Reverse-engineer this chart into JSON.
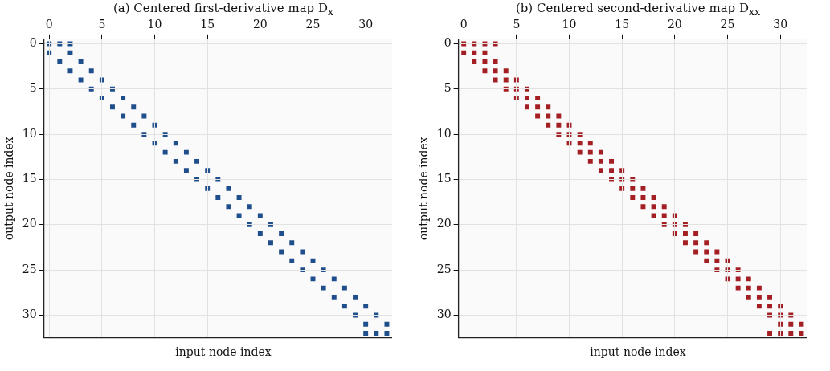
{
  "chart_data": [
    {
      "type": "scatter",
      "title": "(a) Centered first-derivative map D$_{x}$",
      "xlabel": "input node index",
      "ylabel": "output node index",
      "xlim": [
        -0.5,
        32.5
      ],
      "ylim": [
        32.5,
        -0.5
      ],
      "xticks": [
        0,
        5,
        10,
        15,
        20,
        25,
        30
      ],
      "yticks": [
        0,
        5,
        10,
        15,
        20,
        25,
        30
      ],
      "grid": true,
      "marker": "square",
      "series": [
        {
          "color": "#1f4e8c",
          "x": [
            0,
            1,
            2,
            0,
            2,
            1,
            3,
            2,
            4,
            3,
            5,
            4,
            6,
            5,
            7,
            6,
            8,
            7,
            9,
            8,
            10,
            9,
            11,
            10,
            12,
            11,
            13,
            12,
            14,
            13,
            15,
            14,
            16,
            15,
            17,
            16,
            18,
            17,
            19,
            18,
            20,
            19,
            21,
            20,
            22,
            21,
            23,
            22,
            24,
            23,
            25,
            24,
            26,
            25,
            27,
            26,
            28,
            27,
            29,
            28,
            30,
            29,
            31,
            30,
            32,
            30,
            31,
            32
          ],
          "values": [
            0,
            0,
            0,
            1,
            1,
            2,
            2,
            3,
            3,
            4,
            4,
            5,
            5,
            6,
            6,
            7,
            7,
            8,
            8,
            9,
            9,
            10,
            10,
            11,
            11,
            12,
            12,
            13,
            13,
            14,
            14,
            15,
            15,
            16,
            16,
            17,
            17,
            18,
            18,
            19,
            19,
            20,
            20,
            21,
            21,
            22,
            22,
            23,
            23,
            24,
            24,
            25,
            25,
            26,
            26,
            27,
            27,
            28,
            28,
            29,
            29,
            30,
            30,
            31,
            31,
            32,
            32,
            32
          ]
        }
      ]
    },
    {
      "type": "scatter",
      "title": "(b) Centered second-derivative map D$_{xx}$",
      "xlabel": "input node index",
      "ylabel": "output node index",
      "xlim": [
        -0.5,
        32.5
      ],
      "ylim": [
        32.5,
        -0.5
      ],
      "xticks": [
        0,
        5,
        10,
        15,
        20,
        25,
        30
      ],
      "yticks": [
        0,
        5,
        10,
        15,
        20,
        25,
        30
      ],
      "grid": true,
      "marker": "square",
      "series": [
        {
          "color": "#a31f24",
          "x": [
            0,
            1,
            2,
            3,
            0,
            1,
            2,
            1,
            2,
            3,
            2,
            3,
            4,
            3,
            4,
            5,
            4,
            5,
            6,
            5,
            6,
            7,
            6,
            7,
            8,
            7,
            8,
            9,
            8,
            9,
            10,
            9,
            10,
            11,
            10,
            11,
            12,
            11,
            12,
            13,
            12,
            13,
            14,
            13,
            14,
            15,
            14,
            15,
            16,
            15,
            16,
            17,
            16,
            17,
            18,
            17,
            18,
            19,
            18,
            19,
            20,
            19,
            20,
            21,
            20,
            21,
            22,
            21,
            22,
            23,
            22,
            23,
            24,
            23,
            24,
            25,
            24,
            25,
            26,
            25,
            26,
            27,
            26,
            27,
            28,
            27,
            28,
            29,
            28,
            29,
            30,
            29,
            30,
            31,
            30,
            31,
            32,
            29,
            30,
            31,
            32
          ],
          "values": [
            0,
            0,
            0,
            0,
            1,
            1,
            1,
            2,
            2,
            2,
            3,
            3,
            3,
            4,
            4,
            4,
            5,
            5,
            5,
            6,
            6,
            6,
            7,
            7,
            7,
            8,
            8,
            8,
            9,
            9,
            9,
            10,
            10,
            10,
            11,
            11,
            11,
            12,
            12,
            12,
            13,
            13,
            13,
            14,
            14,
            14,
            15,
            15,
            15,
            16,
            16,
            16,
            17,
            17,
            17,
            18,
            18,
            18,
            19,
            19,
            19,
            20,
            20,
            20,
            21,
            21,
            21,
            22,
            22,
            22,
            23,
            23,
            23,
            24,
            24,
            24,
            25,
            25,
            25,
            26,
            26,
            26,
            27,
            27,
            27,
            28,
            28,
            28,
            29,
            29,
            29,
            30,
            30,
            30,
            31,
            31,
            31,
            32,
            32,
            32,
            32
          ]
        }
      ]
    }
  ]
}
